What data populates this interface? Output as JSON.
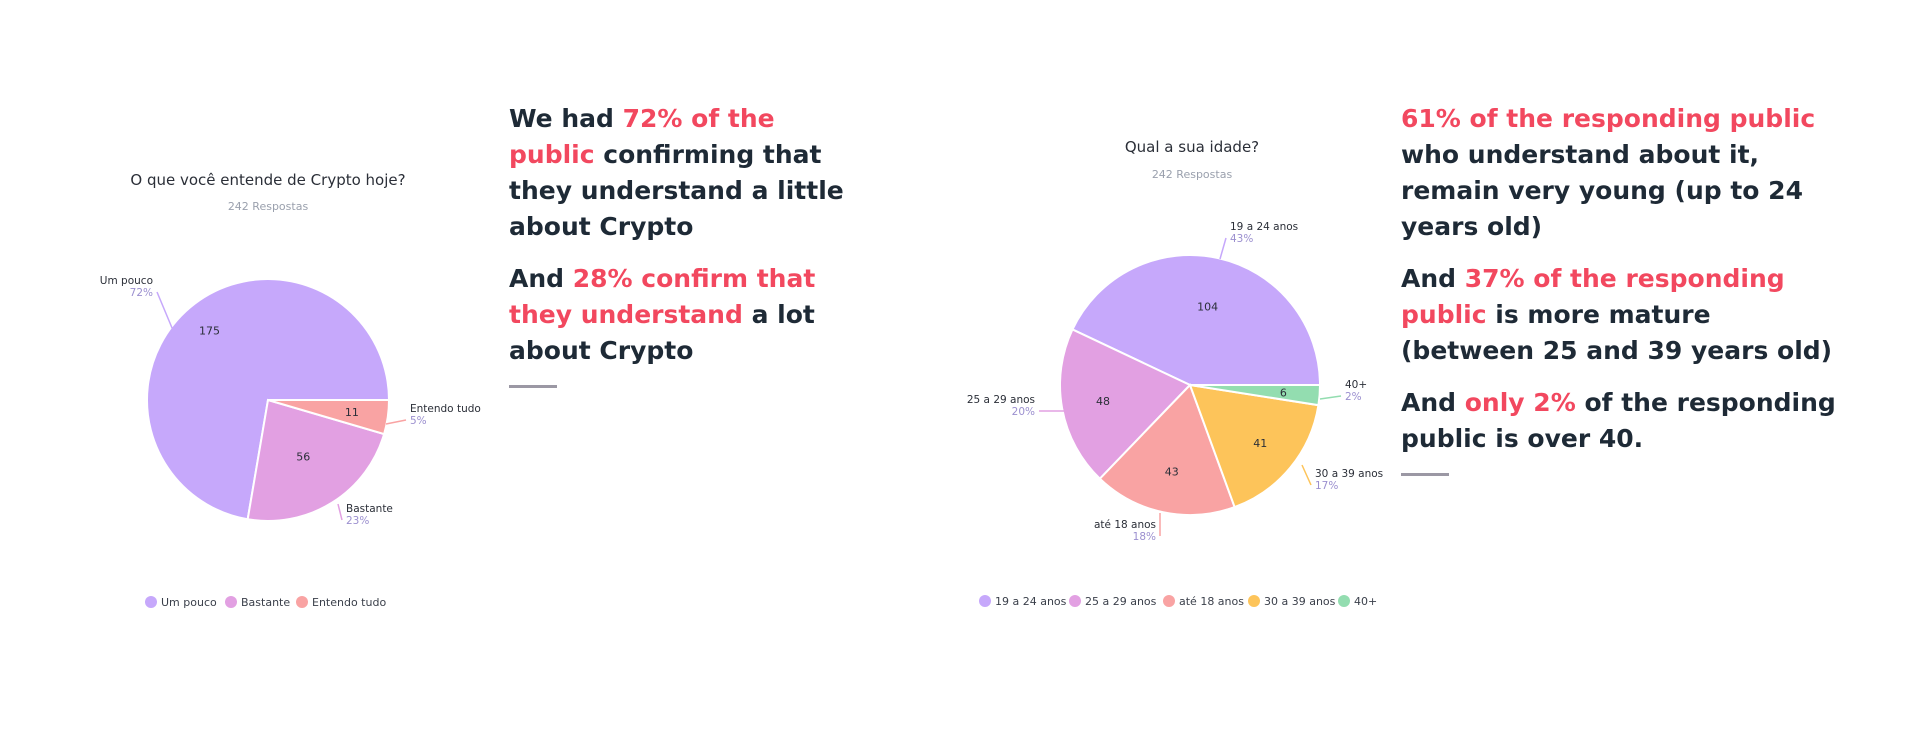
{
  "colors": {
    "purple": "#c6a8fb",
    "pink": "#e2a0e2",
    "salmon": "#f9a3a3",
    "yellow": "#fdc45a",
    "green": "#93ddb0",
    "highlight": "#f2485f"
  },
  "chart_data": [
    {
      "type": "pie",
      "title": "O que você entende de Crypto hoje?",
      "subtitle": "242 Respostas",
      "slices": [
        {
          "name": "Um pouco",
          "value": 175,
          "percent": "72%",
          "color": "#c6a8fb"
        },
        {
          "name": "Bastante",
          "value": 56,
          "percent": "23%",
          "color": "#e2a0e2"
        },
        {
          "name": "Entendo tudo",
          "value": 11,
          "percent": "5%",
          "color": "#f9a3a3"
        }
      ],
      "legend": [
        "Um pouco",
        "Bastante",
        "Entendo tudo"
      ],
      "legend_position": "bottom"
    },
    {
      "type": "pie",
      "title": "Qual a sua idade?",
      "subtitle": "242 Respostas",
      "slices": [
        {
          "name": "19 a 24 anos",
          "value": 104,
          "percent": "43%",
          "color": "#c6a8fb"
        },
        {
          "name": "25 a 29 anos",
          "value": 48,
          "percent": "20%",
          "color": "#e2a0e2"
        },
        {
          "name": "até 18 anos",
          "value": 43,
          "percent": "18%",
          "color": "#f9a3a3"
        },
        {
          "name": "30 a 39 anos",
          "value": 41,
          "percent": "17%",
          "color": "#fdc45a"
        },
        {
          "name": "40+",
          "value": 6,
          "percent": "2%",
          "color": "#93ddb0"
        }
      ],
      "legend": [
        "19 a 24 anos",
        "25 a 29 anos",
        "até 18 anos",
        "30 a 39 anos",
        "40+"
      ],
      "legend_position": "bottom"
    }
  ],
  "text_left": {
    "p1": [
      {
        "text": "We had ",
        "highlight": false
      },
      {
        "text": "72% of the public",
        "highlight": true
      },
      {
        "text": " confirming that they understand a little about Crypto",
        "highlight": false
      }
    ],
    "p2": [
      {
        "text": "And ",
        "highlight": false
      },
      {
        "text": "28% confirm that they understand",
        "highlight": true
      },
      {
        "text": " a lot about Crypto",
        "highlight": false
      }
    ]
  },
  "text_right": {
    "p1": [
      {
        "text": "61% of the responding public",
        "highlight": true
      },
      {
        "text": " who understand about it, remain very young (up to 24 years old)",
        "highlight": false
      }
    ],
    "p2": [
      {
        "text": "And ",
        "highlight": false
      },
      {
        "text": "37% of the responding public",
        "highlight": true
      },
      {
        "text": " is more mature (between 25 and 39 years old)",
        "highlight": false
      }
    ],
    "p3": [
      {
        "text": "And ",
        "highlight": false
      },
      {
        "text": "only 2%",
        "highlight": true
      },
      {
        "text": " of the responding public is over 40.",
        "highlight": false
      }
    ]
  }
}
